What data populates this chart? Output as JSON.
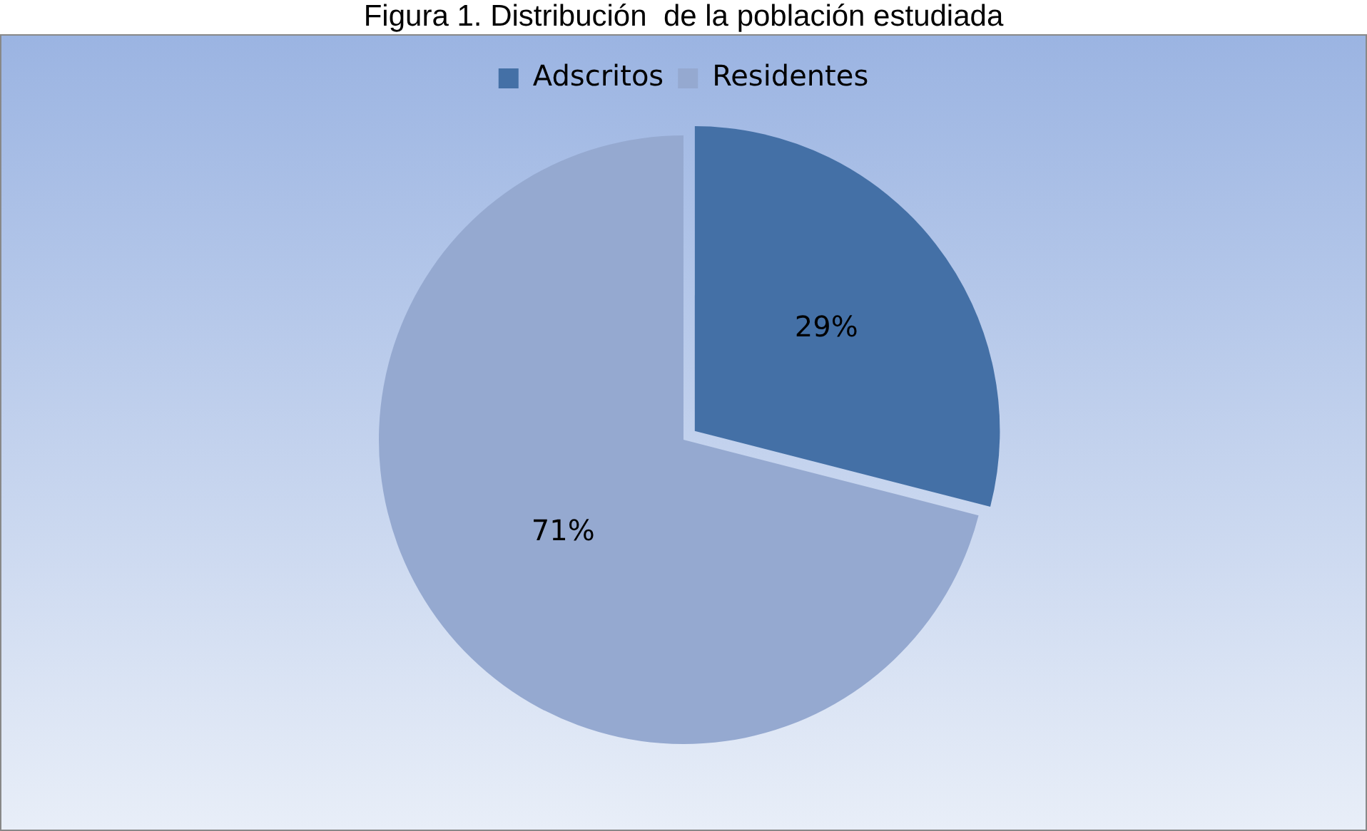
{
  "chart_data": {
    "type": "pie",
    "title": "Figura 1. Distribución  de la población estudiada",
    "categories": [
      "Adscritos",
      "Residentes"
    ],
    "values": [
      29,
      71
    ],
    "colors": [
      "#4470a6",
      "#95a9d0"
    ],
    "legend": "top",
    "value_labels": [
      "29%",
      "71%"
    ]
  }
}
